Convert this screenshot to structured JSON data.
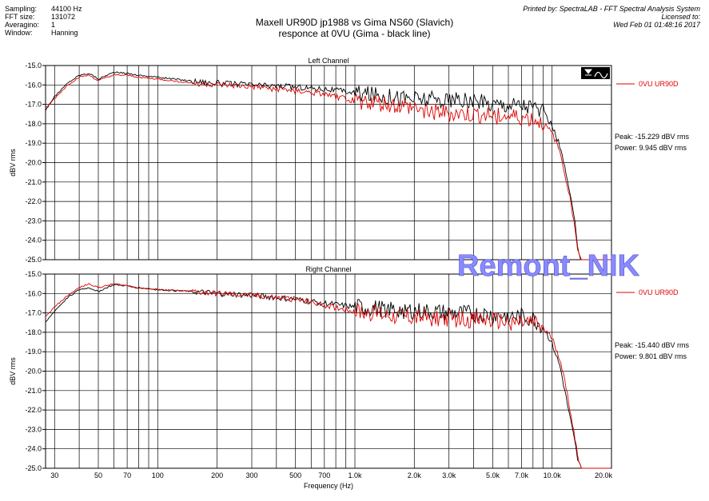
{
  "meta": {
    "rows": [
      {
        "key": "Sampling:",
        "value": "44100 Hz"
      },
      {
        "key": "FFT size:",
        "value": "131072"
      },
      {
        "key": "Averagino:",
        "value": "1"
      },
      {
        "key": "Window:",
        "value": "Hanning"
      }
    ],
    "printed_by": "Printed by: SpectraLAB - FFT Spectral Analysis System",
    "licensed_to": "Licensed to:",
    "datetime": "Wed Feb 01 01:48:16 2017",
    "title_line1": "Maxell UR90D jp1988 vs Gima NS60 (Slavich)",
    "title_line2": "responce at 0VU (Gima - black line)",
    "watermark": "Remont_NIK"
  },
  "colors": {
    "black_series": "#000000",
    "red_series": "#e00000",
    "grid": "#000000"
  },
  "chart_data": [
    {
      "type": "line",
      "title": "Left Channel",
      "xlabel": "",
      "ylabel": "dBV rms",
      "x_scale": "log",
      "xlim": [
        27,
        20000
      ],
      "ylim": [
        -25.0,
        -15.0
      ],
      "legend": {
        "placement": "top-right",
        "label": "0VU UR90D"
      },
      "stats": {
        "peak": "Peak: -15.229 dBV rms",
        "power": "Power: 9.945 dBV rms"
      },
      "series": [
        {
          "color": "#000000",
          "points": [
            [
              27,
              -17.3
            ],
            [
              30,
              -16.6
            ],
            [
              35,
              -15.9
            ],
            [
              40,
              -15.5
            ],
            [
              45,
              -15.4
            ],
            [
              50,
              -15.7
            ],
            [
              55,
              -15.5
            ],
            [
              60,
              -15.35
            ],
            [
              70,
              -15.4
            ],
            [
              80,
              -15.5
            ],
            [
              100,
              -15.6
            ],
            [
              150,
              -15.8
            ],
            [
              200,
              -15.9
            ],
            [
              300,
              -16.0
            ],
            [
              500,
              -16.1
            ],
            [
              700,
              -16.2
            ],
            [
              1000,
              -16.4
            ],
            [
              2000,
              -16.7
            ],
            [
              3000,
              -16.8
            ],
            [
              5000,
              -16.95
            ],
            [
              7000,
              -17.0
            ],
            [
              8000,
              -17.1
            ],
            [
              9000,
              -17.4
            ],
            [
              10000,
              -18.1
            ],
            [
              11000,
              -19.2
            ],
            [
              12000,
              -21.0
            ],
            [
              13000,
              -23.0
            ],
            [
              13500,
              -24.3
            ],
            [
              14000,
              -25.0
            ],
            [
              20000,
              -25.0
            ]
          ]
        },
        {
          "color": "#e00000",
          "points": [
            [
              27,
              -17.2
            ],
            [
              30,
              -16.7
            ],
            [
              35,
              -16.0
            ],
            [
              40,
              -15.6
            ],
            [
              45,
              -15.5
            ],
            [
              50,
              -15.8
            ],
            [
              55,
              -15.6
            ],
            [
              60,
              -15.5
            ],
            [
              70,
              -15.5
            ],
            [
              80,
              -15.6
            ],
            [
              100,
              -15.7
            ],
            [
              150,
              -15.9
            ],
            [
              200,
              -16.0
            ],
            [
              300,
              -16.1
            ],
            [
              500,
              -16.3
            ],
            [
              700,
              -16.5
            ],
            [
              1000,
              -16.8
            ],
            [
              2000,
              -17.2
            ],
            [
              3000,
              -17.5
            ],
            [
              5000,
              -17.6
            ],
            [
              7000,
              -17.7
            ],
            [
              8000,
              -17.8
            ],
            [
              9000,
              -18.0
            ],
            [
              10000,
              -18.5
            ],
            [
              11000,
              -19.5
            ],
            [
              12000,
              -21.2
            ],
            [
              13000,
              -23.2
            ],
            [
              13500,
              -24.5
            ],
            [
              14000,
              -25.0
            ],
            [
              20000,
              -25.0
            ]
          ]
        }
      ]
    },
    {
      "type": "line",
      "title": "Right Channel",
      "xlabel": "Frequency (Hz)",
      "ylabel": "dBV rms",
      "x_scale": "log",
      "xlim": [
        27,
        20000
      ],
      "ylim": [
        -25.0,
        -15.0
      ],
      "legend": {
        "placement": "top-right",
        "label": "0VU UR90D"
      },
      "stats": {
        "peak": "Peak: -15.440 dBV rms",
        "power": "Power: 9.801 dBV rms"
      },
      "series": [
        {
          "color": "#000000",
          "points": [
            [
              27,
              -17.5
            ],
            [
              30,
              -16.9
            ],
            [
              35,
              -16.2
            ],
            [
              40,
              -15.8
            ],
            [
              45,
              -15.7
            ],
            [
              50,
              -15.9
            ],
            [
              55,
              -15.7
            ],
            [
              60,
              -15.55
            ],
            [
              70,
              -15.6
            ],
            [
              80,
              -15.7
            ],
            [
              100,
              -15.8
            ],
            [
              150,
              -15.9
            ],
            [
              200,
              -16.0
            ],
            [
              300,
              -16.1
            ],
            [
              500,
              -16.3
            ],
            [
              700,
              -16.5
            ],
            [
              1000,
              -16.7
            ],
            [
              2000,
              -16.9
            ],
            [
              3000,
              -17.0
            ],
            [
              5000,
              -17.1
            ],
            [
              7000,
              -17.2
            ],
            [
              8000,
              -17.3
            ],
            [
              9000,
              -17.7
            ],
            [
              10000,
              -18.6
            ],
            [
              11000,
              -19.8
            ],
            [
              12000,
              -21.8
            ],
            [
              13000,
              -23.6
            ],
            [
              13500,
              -24.6
            ],
            [
              14000,
              -25.0
            ],
            [
              20000,
              -25.0
            ]
          ]
        },
        {
          "color": "#e00000",
          "points": [
            [
              27,
              -17.2
            ],
            [
              30,
              -16.7
            ],
            [
              35,
              -16.1
            ],
            [
              40,
              -15.7
            ],
            [
              45,
              -15.5
            ],
            [
              50,
              -15.7
            ],
            [
              55,
              -15.6
            ],
            [
              60,
              -15.5
            ],
            [
              70,
              -15.6
            ],
            [
              80,
              -15.7
            ],
            [
              100,
              -15.8
            ],
            [
              150,
              -15.9
            ],
            [
              200,
              -16.0
            ],
            [
              300,
              -16.1
            ],
            [
              500,
              -16.3
            ],
            [
              700,
              -16.6
            ],
            [
              1000,
              -16.9
            ],
            [
              2000,
              -17.2
            ],
            [
              3000,
              -17.3
            ],
            [
              5000,
              -17.4
            ],
            [
              7000,
              -17.5
            ],
            [
              8000,
              -17.5
            ],
            [
              9000,
              -17.8
            ],
            [
              10000,
              -18.3
            ],
            [
              11000,
              -19.4
            ],
            [
              12000,
              -21.3
            ],
            [
              13000,
              -23.3
            ],
            [
              13500,
              -24.4
            ],
            [
              14000,
              -25.0
            ],
            [
              20000,
              -25.0
            ]
          ]
        }
      ]
    }
  ],
  "axis": {
    "y_ticks": [
      "-15.0",
      "-16.0",
      "-17.0",
      "-18.0",
      "-19.0",
      "-20.0",
      "-21.0",
      "-22.0",
      "-23.0",
      "-24.0",
      "-25.0"
    ],
    "x_ticks": [
      {
        "value": 30,
        "label": "30"
      },
      {
        "value": 50,
        "label": "50"
      },
      {
        "value": 70,
        "label": "70"
      },
      {
        "value": 100,
        "label": "100"
      },
      {
        "value": 200,
        "label": "200"
      },
      {
        "value": 300,
        "label": "300"
      },
      {
        "value": 500,
        "label": "500"
      },
      {
        "value": 700,
        "label": "700"
      },
      {
        "value": 1000,
        "label": "1.0k"
      },
      {
        "value": 2000,
        "label": "2.0k"
      },
      {
        "value": 3000,
        "label": "3.0k"
      },
      {
        "value": 5000,
        "label": "5.0k"
      },
      {
        "value": 7000,
        "label": "7.0k"
      },
      {
        "value": 10000,
        "label": "10.0k"
      },
      {
        "value": 20000,
        "label": "20.0k"
      }
    ]
  }
}
